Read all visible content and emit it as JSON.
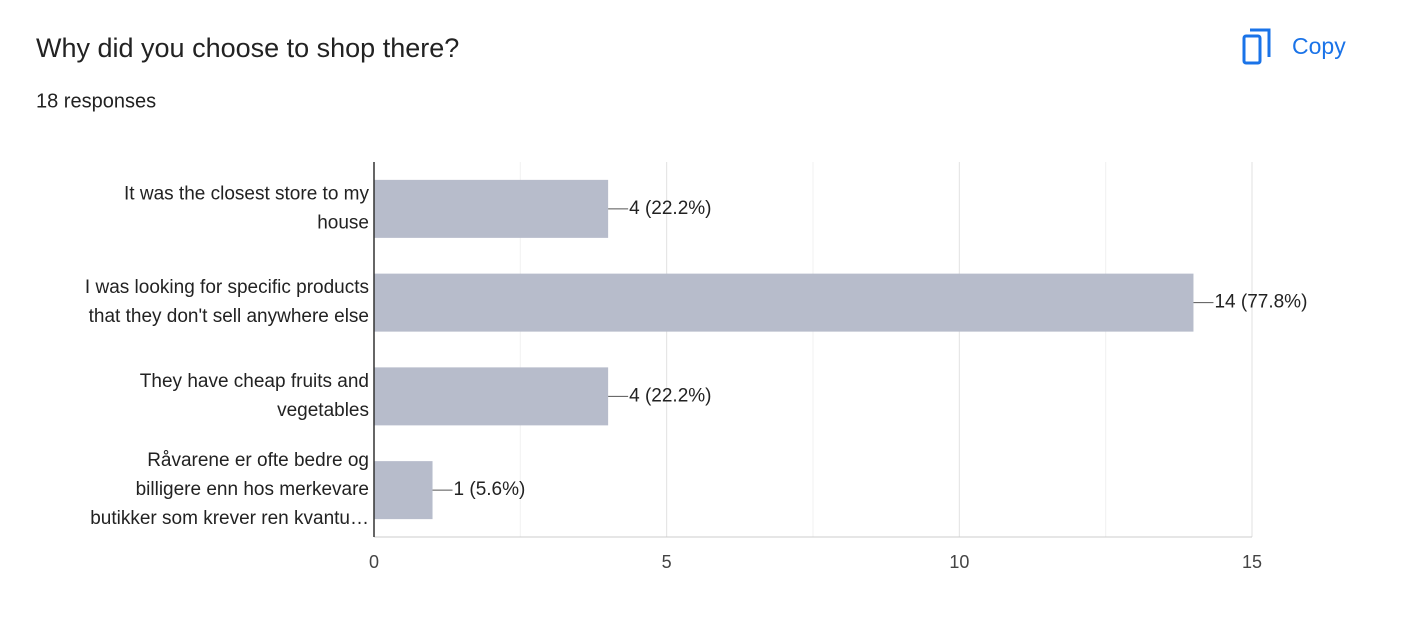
{
  "chart_data": {
    "type": "bar",
    "orientation": "horizontal",
    "title": "Why did you choose to shop there?",
    "subtitle": "18 responses",
    "copy_button": "Copy",
    "categories": [
      [
        "It was the closest store to my",
        "house"
      ],
      [
        "I was looking for specific products",
        "that they don't sell anywhere else"
      ],
      [
        "They have cheap fruits and",
        "vegetables"
      ],
      [
        "Råvarene er ofte bedre og",
        "billigere enn hos merkevare",
        "butikker som krever ren kvantu…"
      ]
    ],
    "values": [
      4,
      14,
      4,
      1
    ],
    "value_labels": [
      "4 (22.2%)",
      "14 (77.8%)",
      "4 (22.2%)",
      "1 (5.6%)"
    ],
    "color": "#b7bccb",
    "xlim": [
      0,
      15
    ],
    "xticks": [
      0,
      5,
      10,
      15
    ],
    "minor_gridlines": [
      2.5,
      7.5,
      12.5
    ],
    "grid": true
  }
}
